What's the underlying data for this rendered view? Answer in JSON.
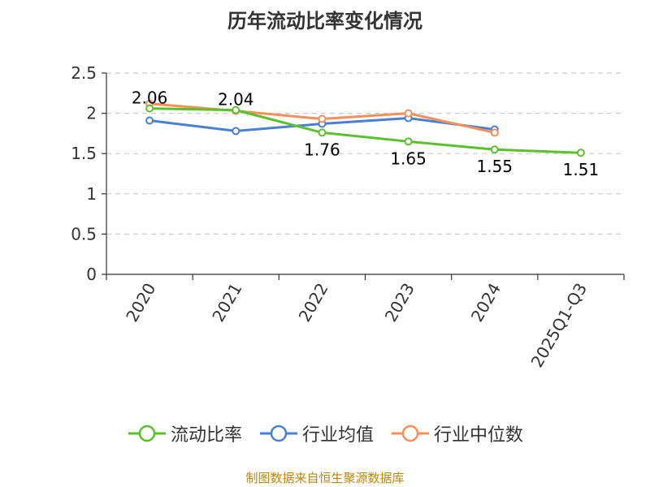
{
  "chart_data": {
    "type": "line",
    "title": "历年流动比率变化情况",
    "categories": [
      "2020",
      "2021",
      "2022",
      "2023",
      "2024",
      "2025Q1-Q3"
    ],
    "ylim": [
      0,
      2.5
    ],
    "yticks": [
      "0",
      "0.5",
      "1",
      "1.5",
      "2",
      "2.5"
    ],
    "grid": true,
    "legend_position": "bottom",
    "series": [
      {
        "name": "流动比率",
        "color": "#5bc12b",
        "values": [
          2.06,
          2.04,
          1.76,
          1.65,
          1.55,
          1.51
        ],
        "labels": [
          "2.06",
          "2.04",
          "1.76",
          "1.65",
          "1.55",
          "1.51"
        ]
      },
      {
        "name": "行业均值",
        "color": "#4a7fd8",
        "values": [
          1.91,
          1.78,
          1.87,
          1.94,
          1.8,
          null
        ]
      },
      {
        "name": "行业中位数",
        "color": "#f5905a",
        "values": [
          2.12,
          2.03,
          1.93,
          2.0,
          1.76,
          null
        ]
      }
    ]
  },
  "source": "制图数据来自恒生聚源数据库"
}
